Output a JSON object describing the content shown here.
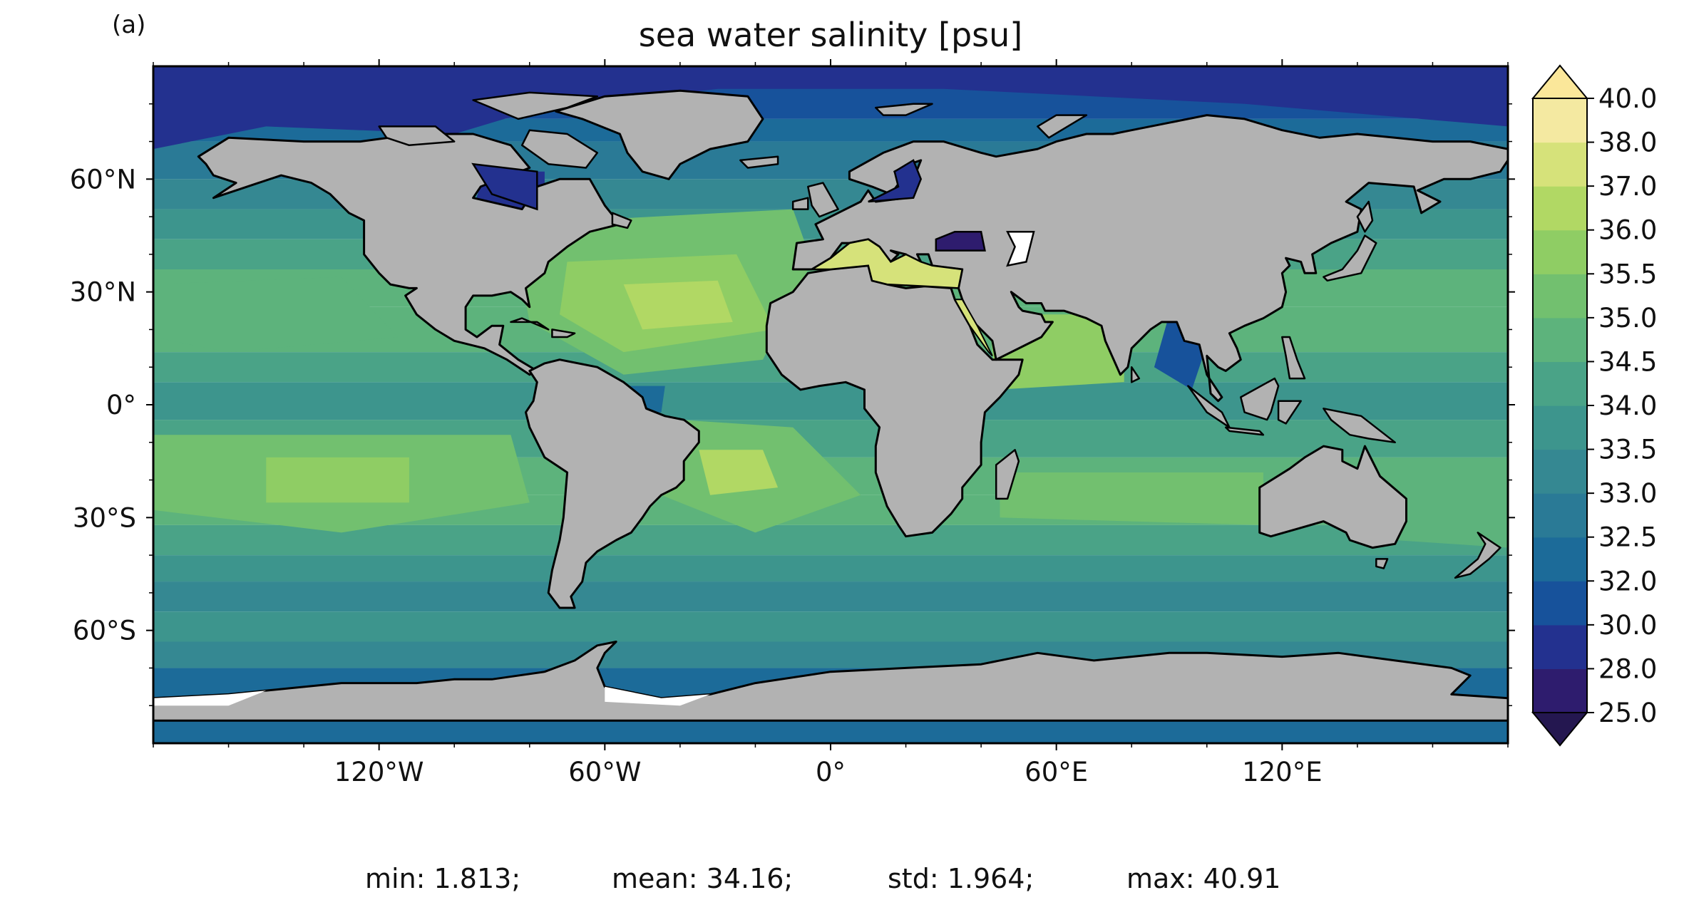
{
  "panel_label": "(a)",
  "title": "sea water salinity [psu]",
  "axes": {
    "lat_ticks": [
      {
        "lat": 60,
        "label": "60°N"
      },
      {
        "lat": 30,
        "label": "30°N"
      },
      {
        "lat": 0,
        "label": "0°"
      },
      {
        "lat": -30,
        "label": "30°S"
      },
      {
        "lat": -60,
        "label": "60°S"
      }
    ],
    "lon_ticks": [
      {
        "lon": -120,
        "label": "120°W"
      },
      {
        "lon": -60,
        "label": "60°W"
      },
      {
        "lon": 0,
        "label": "0°"
      },
      {
        "lon": 60,
        "label": "60°E"
      },
      {
        "lon": 120,
        "label": "120°E"
      }
    ],
    "lon_range": [
      -180,
      180
    ],
    "lat_range": [
      -90,
      90
    ]
  },
  "colorbar": {
    "boundaries": [
      "25.0",
      "28.0",
      "30.0",
      "32.0",
      "32.5",
      "33.0",
      "33.5",
      "34.0",
      "34.5",
      "35.0",
      "35.5",
      "36.0",
      "37.0",
      "38.0",
      "40.0"
    ],
    "colors": [
      "#2e1c6e",
      "#23318f",
      "#17529b",
      "#1c6b99",
      "#2a7a96",
      "#358892",
      "#3d958d",
      "#4aa387",
      "#5db37c",
      "#72c06f",
      "#8fcd64",
      "#b1d864",
      "#d6e27a",
      "#f4e9a1"
    ],
    "extend_min_color": "#241750",
    "extend_max_color": "#fbe79a"
  },
  "colors": {
    "land": "#b2b2b2",
    "ice": "#ffffff",
    "coast": "#000000"
  },
  "stats": {
    "min": "min: 1.813;",
    "mean": "mean: 34.16;",
    "std": "std: 1.964;",
    "max": "max: 40.91"
  }
}
